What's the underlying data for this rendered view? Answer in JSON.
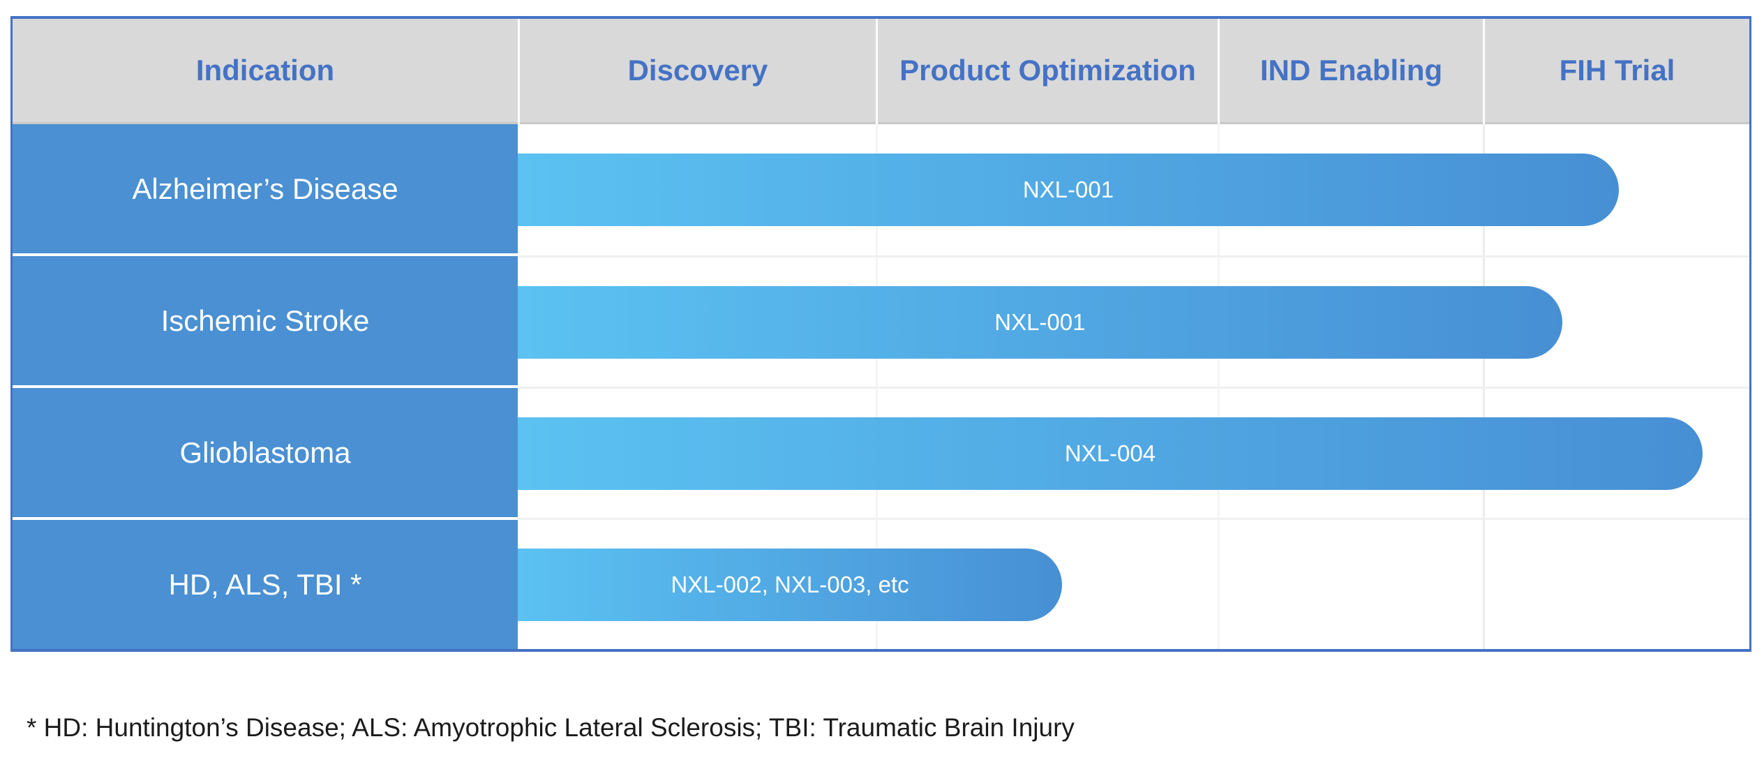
{
  "colors": {
    "table-border": "#4472c4",
    "header-bg": "#d9d9d9",
    "header-text": "#4472c4",
    "header-underline": "#c9c9c9",
    "indication-bg": "#4a90d2",
    "indication-text": "#ffffff",
    "bar-gradient-start": "#5bc2f2",
    "bar-gradient-end": "#478fd4",
    "bar-label-text": "#ffffff",
    "row-gridline": "#f0f0f0",
    "column-gridline": "#ececec",
    "footnote-text": "#1b1b1b"
  },
  "header": {
    "columns": [
      "Indication",
      "Discovery",
      "Product Optimization",
      "IND Enabling",
      "FIH Trial"
    ]
  },
  "rows": [
    {
      "indication": "Alzheimer’s Disease",
      "bar": {
        "label": "NXL-001",
        "width_pct": "89.4%"
      }
    },
    {
      "indication": "Ischemic Stroke",
      "bar": {
        "label": "NXL-001",
        "width_pct": "84.8%"
      }
    },
    {
      "indication": "Glioblastoma",
      "bar": {
        "label": "NXL-004",
        "width_pct": "96.2%"
      }
    },
    {
      "indication": "HD, ALS, TBI *",
      "bar": {
        "label": "NXL-002, NXL-003, etc",
        "width_pct": "44.2%"
      }
    }
  ],
  "footnote": "* HD: Huntington’s Disease; ALS: Amyotrophic Lateral Sclerosis; TBI: Traumatic Brain Injury",
  "chart_data": {
    "type": "bar",
    "subtype": "drug-development-pipeline-gantt",
    "orientation": "horizontal",
    "stages": [
      "Discovery",
      "Product Optimization",
      "IND Enabling",
      "FIH Trial"
    ],
    "categories": [
      "Alzheimer’s Disease",
      "Ischemic Stroke",
      "Glioblastoma",
      "HD, ALS, TBI *"
    ],
    "series": [
      {
        "category": "Alzheimer’s Disease",
        "program": "NXL-001",
        "start_stage": "Discovery",
        "end_stage": "FIH Trial",
        "end_position_stage_units": 3.51,
        "track_fraction": 0.894
      },
      {
        "category": "Ischemic Stroke",
        "program": "NXL-001",
        "start_stage": "Discovery",
        "end_stage": "FIH Trial",
        "end_position_stage_units": 3.3,
        "track_fraction": 0.848
      },
      {
        "category": "Glioblastoma",
        "program": "NXL-004",
        "start_stage": "Discovery",
        "end_stage": "FIH Trial",
        "end_position_stage_units": 3.82,
        "track_fraction": 0.962
      },
      {
        "category": "HD, ALS, TBI *",
        "program": "NXL-002, NXL-003, etc",
        "start_stage": "Discovery",
        "end_stage": "Product Optimization",
        "end_position_stage_units": 1.55,
        "track_fraction": 0.442
      }
    ],
    "legend": false,
    "grid": "faint gray row and column lines in bar area",
    "annotations": [
      "* HD: Huntington’s Disease; ALS: Amyotrophic Lateral Sclerosis; TBI: Traumatic Brain Injury"
    ]
  }
}
